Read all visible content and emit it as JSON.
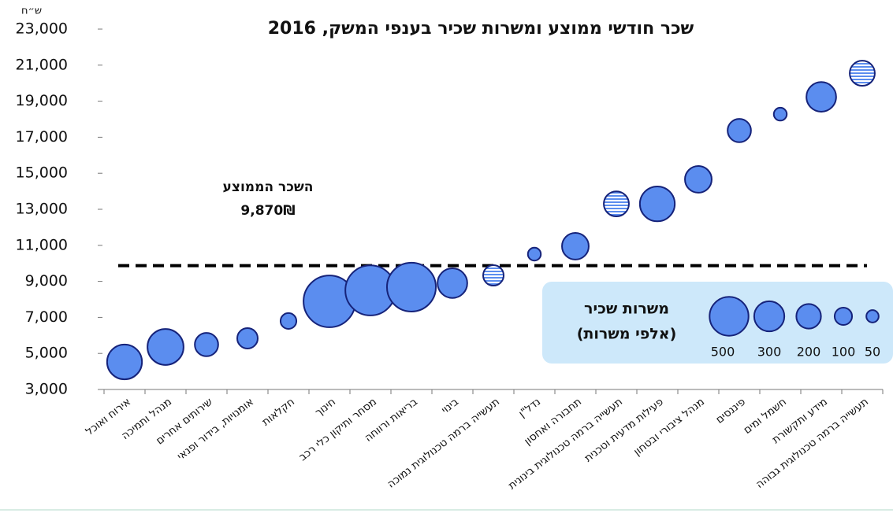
{
  "chart_data": {
    "type": "bubble",
    "title": "שכר חודשי ממוצע ומשרות שכיר בענפי המשק, 2016",
    "y_unit": "ש״ח",
    "categories": [
      "אירוח ואוכל",
      "מנהל ותמיכה",
      "שירותים אחרים",
      "אומנויות, בידור ופנאי",
      "חקלאות",
      "חינוך",
      "מסחר ותיקון כלי רכב",
      "בריאות ורווחה",
      "בינוי",
      "תעשייה ברמה טכנולוגית נמוכה",
      "נדל\"ן",
      "תחבורה ואחסון",
      "תעשייה ברמה טכנולוגית בינונית",
      "פעילות מדעית וטכנית",
      "מנהל ציבורי ובטחון",
      "פיננסים",
      "חשמל ומים",
      "מידע ותקשורת",
      "תעשייה ברמה טכנולוגית גבוהה"
    ],
    "values": [
      4530,
      5360,
      5490,
      5840,
      6800,
      7890,
      8500,
      8680,
      8900,
      9330,
      10510,
      10950,
      13300,
      13300,
      14660,
      17370,
      18280,
      19240,
      20550
    ],
    "sizes": [
      290,
      310,
      130,
      100,
      60,
      640,
      600,
      570,
      210,
      100,
      40,
      170,
      150,
      290,
      170,
      130,
      40,
      210,
      150
    ],
    "hatched": [
      false,
      false,
      false,
      false,
      false,
      false,
      false,
      false,
      false,
      true,
      false,
      false,
      true,
      false,
      false,
      false,
      false,
      false,
      true
    ],
    "color": "#5b8def",
    "ylim": [
      3000,
      23000
    ],
    "yticks": [
      {
        "value": 3000,
        "label": "3,000"
      },
      {
        "value": 5000,
        "label": "5,000"
      },
      {
        "value": 7000,
        "label": "7,000"
      },
      {
        "value": 9000,
        "label": "9,000"
      },
      {
        "value": 11000,
        "label": "11,000"
      },
      {
        "value": 13000,
        "label": "13,000"
      },
      {
        "value": 15000,
        "label": "15,000"
      },
      {
        "value": 17000,
        "label": "17,000"
      },
      {
        "value": 19000,
        "label": "19,000"
      },
      {
        "value": 21000,
        "label": "21,000"
      },
      {
        "value": 23000,
        "label": "23,000"
      }
    ],
    "average": {
      "text": "השכר הממוצע",
      "value": 9870,
      "label": "9,870₪"
    },
    "legend": {
      "title_line1": "משרות שכיר",
      "title_line2": "(אלפי משרות)",
      "sizes": [
        500,
        300,
        200,
        100,
        50
      ]
    }
  }
}
